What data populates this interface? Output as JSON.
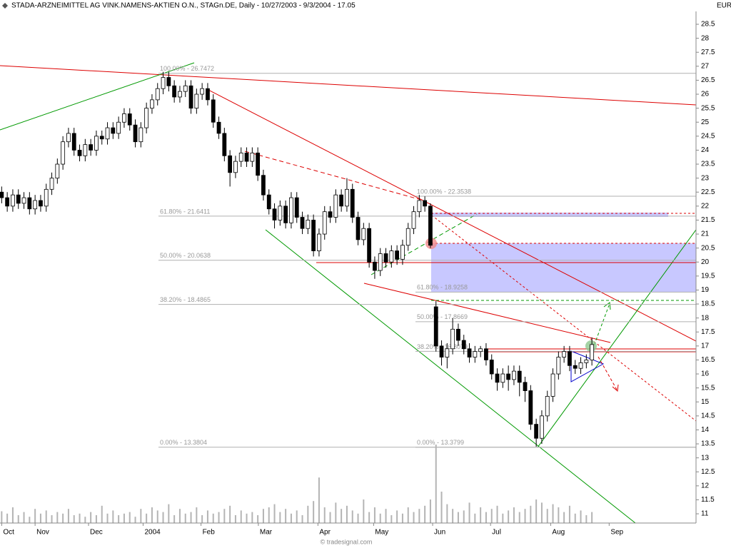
{
  "header": {
    "title": "STADA-ARZNEIMITTEL AG VINK.NAMENS-AKTIEN O.N., STAGn.DE, Daily - 10/27/2003 - 9/3/2004 - 17.05",
    "currency": "EUR"
  },
  "chart_data": {
    "type": "candlestick",
    "open": [
      22.5,
      22.3,
      22.0,
      22.4,
      22.1,
      22.3,
      21.9,
      22.2,
      22.0,
      22.6,
      23.0,
      23.5,
      24.3,
      24.6,
      24.0,
      23.8,
      24.2,
      24.0,
      24.5,
      24.4,
      24.8,
      24.6,
      25.0,
      25.3,
      24.9,
      24.3,
      24.8,
      25.5,
      25.8,
      26.2,
      26.6,
      26.3,
      25.9,
      26.1,
      26.3,
      25.5,
      26.0,
      26.2,
      25.8,
      25.0,
      24.6,
      23.8,
      23.2,
      23.6,
      23.9,
      23.6,
      23.9,
      23.1,
      22.4,
      21.9,
      21.5,
      22.0,
      21.4,
      22.3,
      21.6,
      21.2,
      21.5,
      20.4,
      21.0,
      21.8,
      21.6,
      22.4,
      22.0,
      22.6,
      21.6,
      20.8,
      21.2,
      20.0,
      19.7,
      20.3,
      20.0,
      20.4,
      20.1,
      20.6,
      21.2,
      21.8,
      22.2,
      22.0,
      18.4,
      17.0,
      16.6,
      16.9,
      17.6,
      17.2,
      16.9,
      16.6,
      16.8,
      16.9,
      16.5,
      16.0,
      15.7,
      16.0,
      15.8,
      16.1,
      15.7,
      15.4,
      14.2,
      13.7,
      14.5,
      15.2,
      16.0,
      16.6,
      16.8,
      16.3,
      16.2,
      16.4,
      16.5
    ],
    "high": [
      22.7,
      22.5,
      22.6,
      22.6,
      22.5,
      22.5,
      22.4,
      22.4,
      22.8,
      23.2,
      23.7,
      24.5,
      24.8,
      24.8,
      24.2,
      24.4,
      24.4,
      24.7,
      24.7,
      25.0,
      25.0,
      25.2,
      25.5,
      25.5,
      25.1,
      25.0,
      25.7,
      26.0,
      26.4,
      26.8,
      26.8,
      26.5,
      26.3,
      26.5,
      26.5,
      26.2,
      26.4,
      26.4,
      26.0,
      25.2,
      24.8,
      24.0,
      23.8,
      24.1,
      24.1,
      24.1,
      24.1,
      23.3,
      22.6,
      22.1,
      22.2,
      22.2,
      22.5,
      22.5,
      21.8,
      21.7,
      21.7,
      21.2,
      22.0,
      22.0,
      22.6,
      22.6,
      23.0,
      22.8,
      21.8,
      21.4,
      21.4,
      20.2,
      20.5,
      20.5,
      20.6,
      20.6,
      20.8,
      21.4,
      22.0,
      22.4,
      22.35,
      22.1,
      18.6,
      17.2,
      17.1,
      18.0,
      17.8,
      17.4,
      17.1,
      17.0,
      17.0,
      17.1,
      16.7,
      16.2,
      16.2,
      16.3,
      16.3,
      16.3,
      15.9,
      15.6,
      14.4,
      14.7,
      15.4,
      16.2,
      16.8,
      17.0,
      17.0,
      16.5,
      16.6,
      16.7,
      17.3
    ],
    "low": [
      22.1,
      21.8,
      21.8,
      21.9,
      21.9,
      21.7,
      21.7,
      21.8,
      21.8,
      22.4,
      22.8,
      23.3,
      24.1,
      23.8,
      23.6,
      23.6,
      23.8,
      23.8,
      24.2,
      24.2,
      24.4,
      24.4,
      24.8,
      24.7,
      24.1,
      24.1,
      24.6,
      25.3,
      25.6,
      26.0,
      26.1,
      25.7,
      25.7,
      25.9,
      25.3,
      25.3,
      25.8,
      25.6,
      24.8,
      24.4,
      23.6,
      22.7,
      23.0,
      23.4,
      23.4,
      23.4,
      22.9,
      22.2,
      21.7,
      21.2,
      21.3,
      21.2,
      21.2,
      21.4,
      21.0,
      21.0,
      20.2,
      20.2,
      20.8,
      21.4,
      21.4,
      21.8,
      21.8,
      21.4,
      20.6,
      20.6,
      19.8,
      19.4,
      19.5,
      19.8,
      19.8,
      19.9,
      19.9,
      20.4,
      21.0,
      21.6,
      21.8,
      20.5,
      16.8,
      16.3,
      16.2,
      16.7,
      17.0,
      16.7,
      16.4,
      16.4,
      16.6,
      16.3,
      15.8,
      15.4,
      15.5,
      15.4,
      15.6,
      15.2,
      15.0,
      14.0,
      13.4,
      13.5,
      14.3,
      15.0,
      15.8,
      16.4,
      16.1,
      16.0,
      16.0,
      16.2,
      16.3
    ],
    "close": [
      22.3,
      22.0,
      22.4,
      22.1,
      22.3,
      21.9,
      22.2,
      22.0,
      22.6,
      23.0,
      23.5,
      24.3,
      24.6,
      24.0,
      23.8,
      24.2,
      24.0,
      24.5,
      24.4,
      24.8,
      24.6,
      25.0,
      25.3,
      24.9,
      24.3,
      24.8,
      25.5,
      25.8,
      26.2,
      26.6,
      26.3,
      25.9,
      26.1,
      26.3,
      25.5,
      26.0,
      26.2,
      25.8,
      25.0,
      24.6,
      23.8,
      23.2,
      23.6,
      23.9,
      23.6,
      23.9,
      23.1,
      22.4,
      21.9,
      21.5,
      22.0,
      21.4,
      22.3,
      21.6,
      21.2,
      21.5,
      20.4,
      21.0,
      21.8,
      21.6,
      22.4,
      22.0,
      22.6,
      21.6,
      20.8,
      21.2,
      20.0,
      19.7,
      20.3,
      20.0,
      20.4,
      20.1,
      20.6,
      21.2,
      21.8,
      22.2,
      22.0,
      20.6,
      17.0,
      16.6,
      16.9,
      17.6,
      17.2,
      16.9,
      16.6,
      16.8,
      16.9,
      16.5,
      16.0,
      15.7,
      16.0,
      15.8,
      16.1,
      15.7,
      15.4,
      14.2,
      13.7,
      14.5,
      15.2,
      16.0,
      16.6,
      16.8,
      16.3,
      16.2,
      16.4,
      16.5,
      17.05
    ],
    "volume": [
      15,
      12,
      20,
      10,
      14,
      8,
      18,
      12,
      16,
      10,
      14,
      12,
      18,
      10,
      12,
      8,
      14,
      10,
      22,
      12,
      16,
      10,
      12,
      14,
      8,
      18,
      12,
      20,
      16,
      14,
      24,
      10,
      18,
      12,
      14,
      20,
      10,
      16,
      12,
      14,
      18,
      22,
      10,
      16,
      12,
      14,
      10,
      18,
      20,
      24,
      14,
      18,
      12,
      16,
      10,
      22,
      28,
      58,
      20,
      14,
      26,
      18,
      22,
      16,
      12,
      30,
      14,
      20,
      12,
      18,
      10,
      16,
      12,
      20,
      14,
      18,
      22,
      30,
      100,
      40,
      24,
      18,
      14,
      16,
      26,
      12,
      20,
      14,
      18,
      22,
      12,
      16,
      20,
      14,
      18,
      22,
      30,
      26,
      18,
      24,
      20,
      14,
      22,
      12,
      16,
      10,
      14
    ],
    "vlim": [
      0,
      100
    ],
    "xlim": [
      -0.3,
      124.7
    ],
    "xticks": [
      {
        "value": 0,
        "label": "Oct"
      },
      {
        "value": 6,
        "label": "Nov"
      },
      {
        "value": 15.6,
        "label": "Dec"
      },
      {
        "value": 25.4,
        "label": "2004"
      },
      {
        "value": 35.8,
        "label": "Feb"
      },
      {
        "value": 46.1,
        "label": "Mar"
      },
      {
        "value": 56.8,
        "label": "Apr"
      },
      {
        "value": 66.8,
        "label": "May"
      },
      {
        "value": 77.4,
        "label": "Jun"
      },
      {
        "value": 87.8,
        "label": "Jul"
      },
      {
        "value": 98.6,
        "label": "Aug"
      },
      {
        "value": 109.1,
        "label": "Sep"
      }
    ],
    "ylim": [
      10.67,
      28.96
    ],
    "yticks": [
      11,
      11.5,
      12,
      12.5,
      13,
      13.5,
      14,
      14.5,
      15,
      15.5,
      16,
      16.5,
      17,
      17.5,
      18,
      18.5,
      19,
      19.5,
      20,
      20.5,
      21,
      21.5,
      22,
      22.5,
      23,
      23.5,
      24,
      24.5,
      25,
      25.5,
      26,
      26.5,
      27,
      27.5,
      28,
      28.5
    ],
    "fib_sets": [
      {
        "levels": [
          {
            "value": 26.7472,
            "label": "100.00% - 26.7472"
          },
          {
            "value": 21.6411,
            "label": "61.80% - 21.6411"
          },
          {
            "value": 20.0638,
            "label": "50.00% - 20.0638"
          },
          {
            "value": 18.4865,
            "label": "38.20% - 18.4865"
          },
          {
            "value": 13.3804,
            "label": "0.00% - 13.3804"
          }
        ]
      },
      {
        "levels": [
          {
            "value": 22.3538,
            "label": "100.00% - 22.3538"
          },
          {
            "value": 18.9258,
            "label": "61.80% - 18.9258"
          },
          {
            "value": 17.8669,
            "label": "50.00% - 17.8669"
          },
          {
            "value": 16.8079,
            "label": "38.20% - 16.8079"
          },
          {
            "value": 13.3799,
            "label": "0.00% - 13.3799"
          }
        ]
      }
    ],
    "up_color": "#ffffff",
    "down_color": "#000000",
    "volume_color": "#b4b4b4",
    "fib_color": "#b0b0b0"
  },
  "footer": "© tradesignal.com"
}
